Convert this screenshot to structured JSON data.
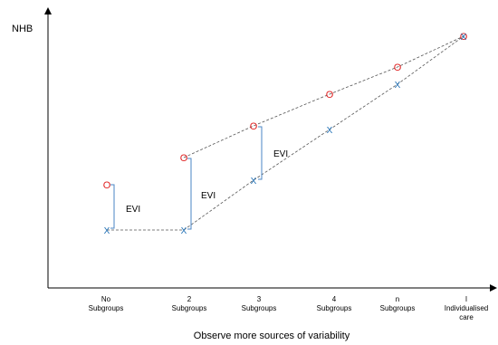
{
  "diagram": {
    "y_axis_label": "NHB",
    "x_axis_label": "Observe more sources of variability",
    "bracket_label": "EVI",
    "marker_o": "O",
    "marker_x": "X",
    "categories": [
      {
        "line1": "No",
        "line2": "Subgroups"
      },
      {
        "line1": "2",
        "line2": "Subgroups"
      },
      {
        "line1": "3",
        "line2": "Subgroups"
      },
      {
        "line1": "4",
        "line2": "Subgroups"
      },
      {
        "line1": "n",
        "line2": "Subgroups"
      },
      {
        "line1": "I",
        "line2": "Individualised",
        "line3": "care"
      }
    ]
  },
  "colors": {
    "o_marker": "#e02020",
    "x_marker": "#1f6fb5",
    "bracket": "#4a86c5",
    "dashed_line": "#555555",
    "axis": "#000000"
  }
}
